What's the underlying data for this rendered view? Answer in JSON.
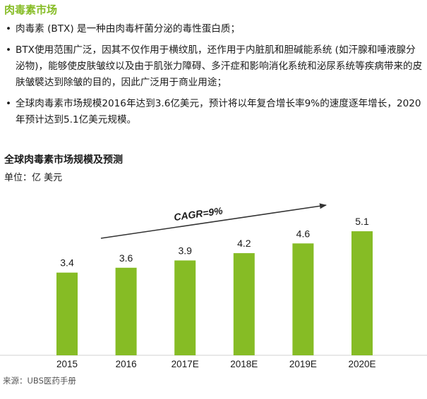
{
  "heading": "肉毒素市场",
  "bullets": [
    "肉毒素 (BTX) 是一种由肉毒杆菌分泌的毒性蛋白质；",
    "BTX使用范围广泛，因其不仅作用于横纹肌，还作用于内脏肌和胆碱能系统 (如汗腺和唾液腺分泌物)，能够使皮肤皱纹以及由于肌张力障碍、多汗症和影响消化系统和泌尿系统等疾病带来的皮肤皱襞达到除皱的目的，因此广泛用于商业用途；",
    "全球肉毒素市场规模2016年达到3.6亿美元，预计将以年复合增长率9%的速度逐年增长，2020年预计达到5.1亿美元规模。"
  ],
  "bullet_symbol": "•",
  "chart_data": {
    "type": "bar",
    "title": "全球肉毒素市场规模及预测",
    "unit_label": "单位：亿 美元",
    "categories": [
      "2015",
      "2016",
      "2017E",
      "2018E",
      "2019E",
      "2020E"
    ],
    "values": [
      3.4,
      3.6,
      3.9,
      4.2,
      4.6,
      5.1
    ],
    "value_labels": [
      "3.4",
      "3.6",
      "3.9",
      "4.2",
      "4.6",
      "5.1"
    ],
    "ylim": [
      0,
      5.8
    ],
    "bar_color": "#86bc25",
    "annotation": "CAGR=9%",
    "grid": false
  },
  "source": "来源：UBS医药手册"
}
